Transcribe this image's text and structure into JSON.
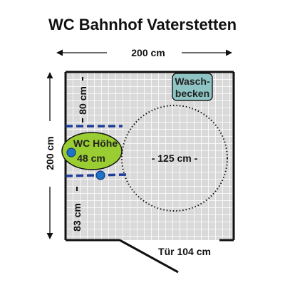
{
  "title": "WC Bahnhof Vaterstetten",
  "dimensions": {
    "width_label": "200 cm",
    "height_label": "200 cm",
    "upper_gap_label": "80 cm",
    "lower_gap_label": "83 cm",
    "turning_circle_label": "- 125 cm -",
    "door_label": "Tür 104 cm"
  },
  "fixtures": {
    "washbasin_line1": "Wasch-",
    "washbasin_line2": "becken",
    "wc_line1": "WC Höhe",
    "wc_line2": "48 cm"
  },
  "colors": {
    "grid_tile": "#d9d9d9",
    "grid_line": "#ffffff",
    "wall": "#111111",
    "wc_fill": "#9acd32",
    "washbasin_fill": "#8fc4c4",
    "grab_bar": "#1f3d99",
    "grab_bar_knob": "#1e73c8"
  }
}
